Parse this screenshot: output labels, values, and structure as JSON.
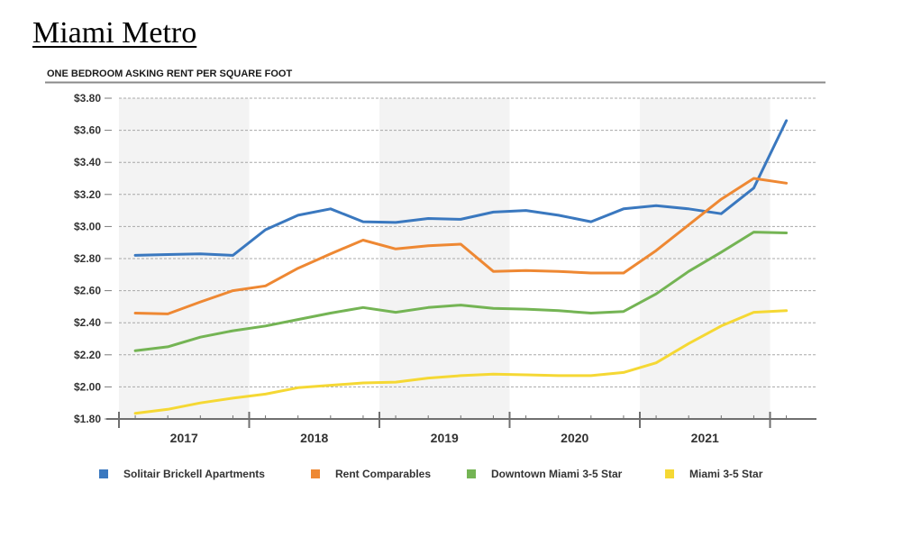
{
  "page": {
    "heading": "Miami Metro"
  },
  "chart_data": {
    "type": "line",
    "title": "ONE BEDROOM ASKING RENT PER SQUARE FOOT",
    "xlabel": "",
    "ylabel": "",
    "ylim": [
      1.8,
      3.8
    ],
    "yticks": [
      "$1.80",
      "$2.00",
      "$2.20",
      "$2.40",
      "$2.60",
      "$2.80",
      "$3.00",
      "$3.20",
      "$3.40",
      "$3.60",
      "$3.80"
    ],
    "years": [
      "2017",
      "2018",
      "2019",
      "2020",
      "2021"
    ],
    "grid": true,
    "legend_position": "bottom",
    "points_per_year": 4,
    "series": [
      {
        "name": "Solitair Brickell Apartments",
        "color": "#3a78bf",
        "values": [
          2.82,
          2.825,
          2.83,
          2.82,
          2.98,
          3.07,
          3.11,
          3.03,
          3.025,
          3.05,
          3.045,
          3.09,
          3.1,
          3.07,
          3.03,
          3.11,
          3.13,
          3.11,
          3.08,
          3.24,
          3.66
        ]
      },
      {
        "name": "Rent Comparables",
        "color": "#ee8833",
        "values": [
          2.46,
          2.455,
          2.53,
          2.6,
          2.63,
          2.74,
          2.83,
          2.915,
          2.86,
          2.88,
          2.89,
          2.72,
          2.725,
          2.72,
          2.71,
          2.71,
          2.85,
          3.01,
          3.17,
          3.3,
          3.27
        ]
      },
      {
        "name": "Downtown Miami 3-5 Star",
        "color": "#74b454",
        "values": [
          2.225,
          2.25,
          2.31,
          2.35,
          2.38,
          2.42,
          2.46,
          2.495,
          2.465,
          2.495,
          2.51,
          2.49,
          2.485,
          2.475,
          2.46,
          2.47,
          2.58,
          2.72,
          2.84,
          2.965,
          2.96
        ]
      },
      {
        "name": "Miami 3-5 Star",
        "color": "#f5d834",
        "values": [
          1.835,
          1.86,
          1.9,
          1.93,
          1.955,
          1.995,
          2.01,
          2.025,
          2.03,
          2.055,
          2.07,
          2.08,
          2.075,
          2.07,
          2.07,
          2.09,
          2.15,
          2.27,
          2.38,
          2.465,
          2.475
        ]
      }
    ]
  }
}
